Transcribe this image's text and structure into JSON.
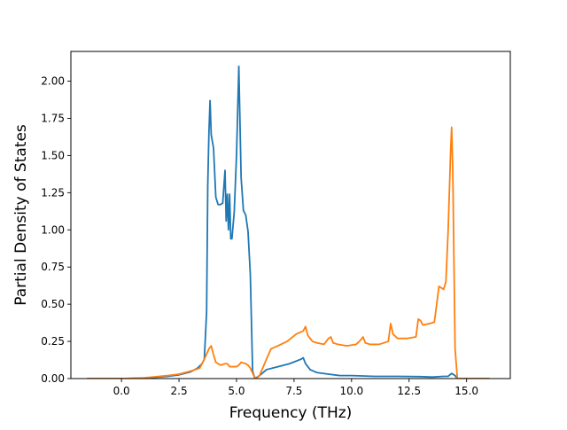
{
  "chart_data": {
    "type": "line",
    "title": "",
    "xlabel": "Frequency (THz)",
    "ylabel": "Partial Density of States",
    "xlim": [
      -2.2,
      16.9
    ],
    "ylim": [
      0,
      2.2
    ],
    "xticks": [
      0.0,
      2.5,
      5.0,
      7.5,
      10.0,
      12.5,
      15.0
    ],
    "xtick_labels": [
      "0.0",
      "2.5",
      "5.0",
      "7.5",
      "10.0",
      "12.5",
      "15.0"
    ],
    "yticks": [
      0.0,
      0.25,
      0.5,
      0.75,
      1.0,
      1.25,
      1.5,
      1.75,
      2.0
    ],
    "ytick_labels": [
      "0.00",
      "0.25",
      "0.50",
      "0.75",
      "1.00",
      "1.25",
      "1.50",
      "1.75",
      "2.00"
    ],
    "grid": false,
    "legend": "none",
    "series": [
      {
        "color": "#1f77b4",
        "x": [
          -1.5,
          0.0,
          1.0,
          2.0,
          2.5,
          3.0,
          3.3,
          3.5,
          3.6,
          3.7,
          3.75,
          3.8,
          3.85,
          3.9,
          4.0,
          4.1,
          4.2,
          4.3,
          4.4,
          4.5,
          4.55,
          4.6,
          4.65,
          4.7,
          4.75,
          4.8,
          4.9,
          5.0,
          5.1,
          5.2,
          5.3,
          5.4,
          5.5,
          5.6,
          5.7,
          5.8,
          6.0,
          6.3,
          6.8,
          7.3,
          7.8,
          7.9,
          8.0,
          8.2,
          8.5,
          9.0,
          9.5,
          10.0,
          11.0,
          12.0,
          13.0,
          13.5,
          14.0,
          14.2,
          14.35,
          14.5,
          14.6,
          15.0,
          16.0
        ],
        "y": [
          0.0,
          0.0,
          0.003,
          0.015,
          0.025,
          0.045,
          0.07,
          0.1,
          0.13,
          0.45,
          1.3,
          1.65,
          1.87,
          1.64,
          1.55,
          1.22,
          1.17,
          1.17,
          1.18,
          1.4,
          1.06,
          1.24,
          1.0,
          1.24,
          0.94,
          0.94,
          1.12,
          1.5,
          2.1,
          1.35,
          1.13,
          1.1,
          0.99,
          0.7,
          0.05,
          0.0,
          0.02,
          0.06,
          0.08,
          0.1,
          0.13,
          0.14,
          0.1,
          0.06,
          0.04,
          0.03,
          0.02,
          0.02,
          0.015,
          0.015,
          0.013,
          0.01,
          0.015,
          0.015,
          0.035,
          0.02,
          0.0,
          0.0,
          0.0
        ]
      },
      {
        "color": "#ff7f0e",
        "x": [
          -1.5,
          0.0,
          1.0,
          2.0,
          2.5,
          3.0,
          3.4,
          3.6,
          3.8,
          3.9,
          4.0,
          4.1,
          4.2,
          4.3,
          4.5,
          4.6,
          4.7,
          4.8,
          5.0,
          5.1,
          5.2,
          5.4,
          5.5,
          5.6,
          5.75,
          5.85,
          6.0,
          6.3,
          6.5,
          6.8,
          7.2,
          7.6,
          7.9,
          8.0,
          8.1,
          8.3,
          8.5,
          8.8,
          9.0,
          9.1,
          9.2,
          9.4,
          9.8,
          10.2,
          10.4,
          10.5,
          10.6,
          10.8,
          11.2,
          11.6,
          11.7,
          11.8,
          12.0,
          12.4,
          12.8,
          12.9,
          13.0,
          13.1,
          13.4,
          13.6,
          13.7,
          13.8,
          14.0,
          14.1,
          14.2,
          14.3,
          14.35,
          14.4,
          14.5,
          14.6,
          15.0,
          16.0
        ],
        "y": [
          0.0,
          0.0,
          0.005,
          0.02,
          0.03,
          0.05,
          0.07,
          0.13,
          0.2,
          0.22,
          0.16,
          0.11,
          0.1,
          0.09,
          0.1,
          0.1,
          0.08,
          0.08,
          0.08,
          0.09,
          0.11,
          0.1,
          0.09,
          0.07,
          0.02,
          0.0,
          0.02,
          0.13,
          0.2,
          0.22,
          0.25,
          0.3,
          0.32,
          0.35,
          0.29,
          0.25,
          0.24,
          0.23,
          0.27,
          0.28,
          0.24,
          0.23,
          0.22,
          0.23,
          0.26,
          0.28,
          0.24,
          0.23,
          0.23,
          0.25,
          0.37,
          0.3,
          0.27,
          0.27,
          0.28,
          0.4,
          0.39,
          0.36,
          0.37,
          0.38,
          0.5,
          0.62,
          0.6,
          0.65,
          1.0,
          1.5,
          1.69,
          1.4,
          0.2,
          0.0,
          0.0,
          0.0
        ]
      }
    ]
  }
}
